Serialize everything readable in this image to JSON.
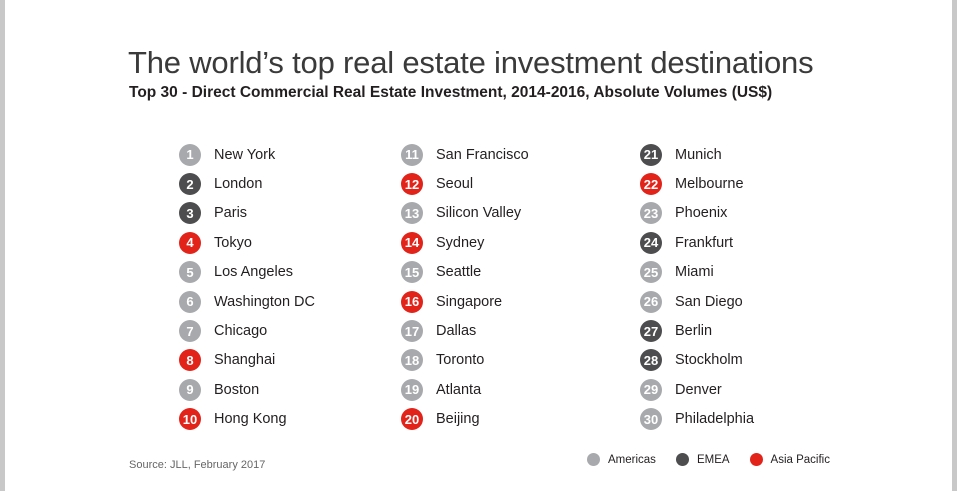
{
  "title": "The world’s top real estate investment destinations",
  "subtitle": "Top 30 - Direct Commercial Real Estate Investment, 2014-2016, Absolute Volumes (US$)",
  "source": "Source: JLL, February 2017",
  "region_colors": {
    "americas": "#a7a9ac",
    "emea": "#4d4d4f",
    "apac": "#e2231a"
  },
  "legend": [
    {
      "label": "Americas",
      "region": "americas"
    },
    {
      "label": "EMEA",
      "region": "emea"
    },
    {
      "label": "Asia Pacific",
      "region": "apac"
    }
  ],
  "rankings": [
    [
      {
        "rank": "1",
        "city": "New York",
        "region": "americas"
      },
      {
        "rank": "2",
        "city": "London",
        "region": "emea"
      },
      {
        "rank": "3",
        "city": "Paris",
        "region": "emea"
      },
      {
        "rank": "4",
        "city": "Tokyo",
        "region": "apac"
      },
      {
        "rank": "5",
        "city": "Los Angeles",
        "region": "americas"
      },
      {
        "rank": "6",
        "city": "Washington DC",
        "region": "americas"
      },
      {
        "rank": "7",
        "city": "Chicago",
        "region": "americas"
      },
      {
        "rank": "8",
        "city": "Shanghai",
        "region": "apac"
      },
      {
        "rank": "9",
        "city": "Boston",
        "region": "americas"
      },
      {
        "rank": "10",
        "city": "Hong Kong",
        "region": "apac"
      }
    ],
    [
      {
        "rank": "11",
        "city": "San Francisco",
        "region": "americas"
      },
      {
        "rank": "12",
        "city": "Seoul",
        "region": "apac"
      },
      {
        "rank": "13",
        "city": "Silicon Valley",
        "region": "americas"
      },
      {
        "rank": "14",
        "city": "Sydney",
        "region": "apac"
      },
      {
        "rank": "15",
        "city": "Seattle",
        "region": "americas"
      },
      {
        "rank": "16",
        "city": "Singapore",
        "region": "apac"
      },
      {
        "rank": "17",
        "city": "Dallas",
        "region": "americas"
      },
      {
        "rank": "18",
        "city": "Toronto",
        "region": "americas"
      },
      {
        "rank": "19",
        "city": "Atlanta",
        "region": "americas"
      },
      {
        "rank": "20",
        "city": "Beijing",
        "region": "apac"
      }
    ],
    [
      {
        "rank": "21",
        "city": "Munich",
        "region": "emea"
      },
      {
        "rank": "22",
        "city": "Melbourne",
        "region": "apac"
      },
      {
        "rank": "23",
        "city": "Phoenix",
        "region": "americas"
      },
      {
        "rank": "24",
        "city": "Frankfurt",
        "region": "emea"
      },
      {
        "rank": "25",
        "city": "Miami",
        "region": "americas"
      },
      {
        "rank": "26",
        "city": "San Diego",
        "region": "americas"
      },
      {
        "rank": "27",
        "city": "Berlin",
        "region": "emea"
      },
      {
        "rank": "28",
        "city": "Stockholm",
        "region": "emea"
      },
      {
        "rank": "29",
        "city": "Denver",
        "region": "americas"
      },
      {
        "rank": "30",
        "city": "Philadelphia",
        "region": "americas"
      }
    ]
  ]
}
